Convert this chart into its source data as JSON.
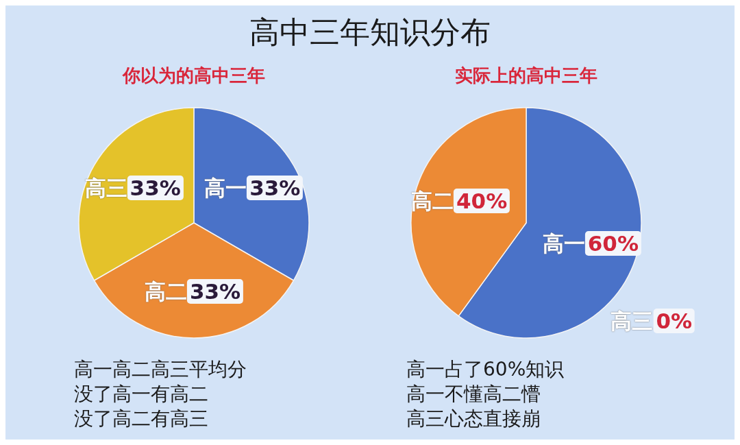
{
  "chart_data": [
    {
      "type": "other",
      "title": "高中三年知识分布"
    },
    {
      "type": "pie",
      "title": "你以为的高中三年",
      "categories": [
        "高一",
        "高二",
        "高三"
      ],
      "values": [
        33,
        33,
        33
      ],
      "colors": [
        "#4a72c8",
        "#ec8a35",
        "#e4c22a"
      ],
      "value_labels": [
        "33%",
        "33%",
        "33%"
      ],
      "annotations": [
        "高一高二高三平均分",
        "没了高一有高二",
        "没了高二有高三"
      ]
    },
    {
      "type": "pie",
      "title": "实际上的高中三年",
      "categories": [
        "高一",
        "高二",
        "高三"
      ],
      "values": [
        60,
        40,
        0
      ],
      "colors": [
        "#4a72c8",
        "#ec8a35",
        "#e4c22a"
      ],
      "value_labels": [
        "60%",
        "40%",
        "0%"
      ],
      "annotations": [
        "高一占了60%知识",
        "高一不懂高二懵",
        "高三心态直接崩"
      ]
    }
  ]
}
